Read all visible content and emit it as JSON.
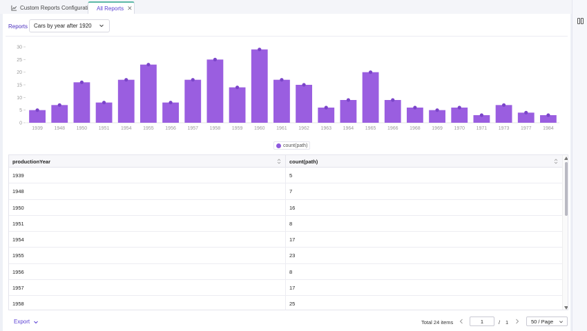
{
  "tabs": [
    {
      "label": "Custom Reports Configuration",
      "icon": "chart-config-icon"
    },
    {
      "label": "All Reports",
      "icon": "reports-icon",
      "active": true
    }
  ],
  "toolbar": {
    "reports_label": "Reports",
    "selected_report": "Cars by year after 1920"
  },
  "legend": {
    "label": "count(path)"
  },
  "chart_data": {
    "type": "bar",
    "categories": [
      "1939",
      "1948",
      "1950",
      "1951",
      "1954",
      "1955",
      "1956",
      "1957",
      "1958",
      "1959",
      "1960",
      "1961",
      "1962",
      "1963",
      "1964",
      "1965",
      "1966",
      "1968",
      "1969",
      "1970",
      "1971",
      "1973",
      "1977",
      "1984"
    ],
    "series": [
      {
        "name": "count(path)",
        "values": [
          5,
          7,
          16,
          8,
          17,
          23,
          8,
          17,
          25,
          14,
          29,
          17,
          15,
          6,
          9,
          20,
          9,
          6,
          5,
          6,
          3,
          7,
          4,
          3
        ]
      }
    ],
    "yticks": [
      "0",
      "5",
      "10",
      "15",
      "20",
      "25",
      "30"
    ],
    "ylim": [
      0,
      30
    ],
    "bar_color": "#9a5ee0",
    "legend_position": "bottom-center"
  },
  "table": {
    "columns": [
      "productionYear",
      "count(path)"
    ],
    "rows": [
      [
        "1939",
        "5"
      ],
      [
        "1948",
        "7"
      ],
      [
        "1950",
        "16"
      ],
      [
        "1951",
        "8"
      ],
      [
        "1954",
        "17"
      ],
      [
        "1955",
        "23"
      ],
      [
        "1956",
        "8"
      ],
      [
        "1957",
        "17"
      ],
      [
        "1958",
        "25"
      ]
    ]
  },
  "footer": {
    "export_label": "Export",
    "total_label": "Total 24 items",
    "current_page": "1",
    "page_separator": "/",
    "page_count": "1",
    "page_size": "50 / Page"
  },
  "colors": {
    "accent": "#5a3fd3",
    "bar": "#9a5ee0",
    "active_tab_border": "#5bb8a6"
  }
}
